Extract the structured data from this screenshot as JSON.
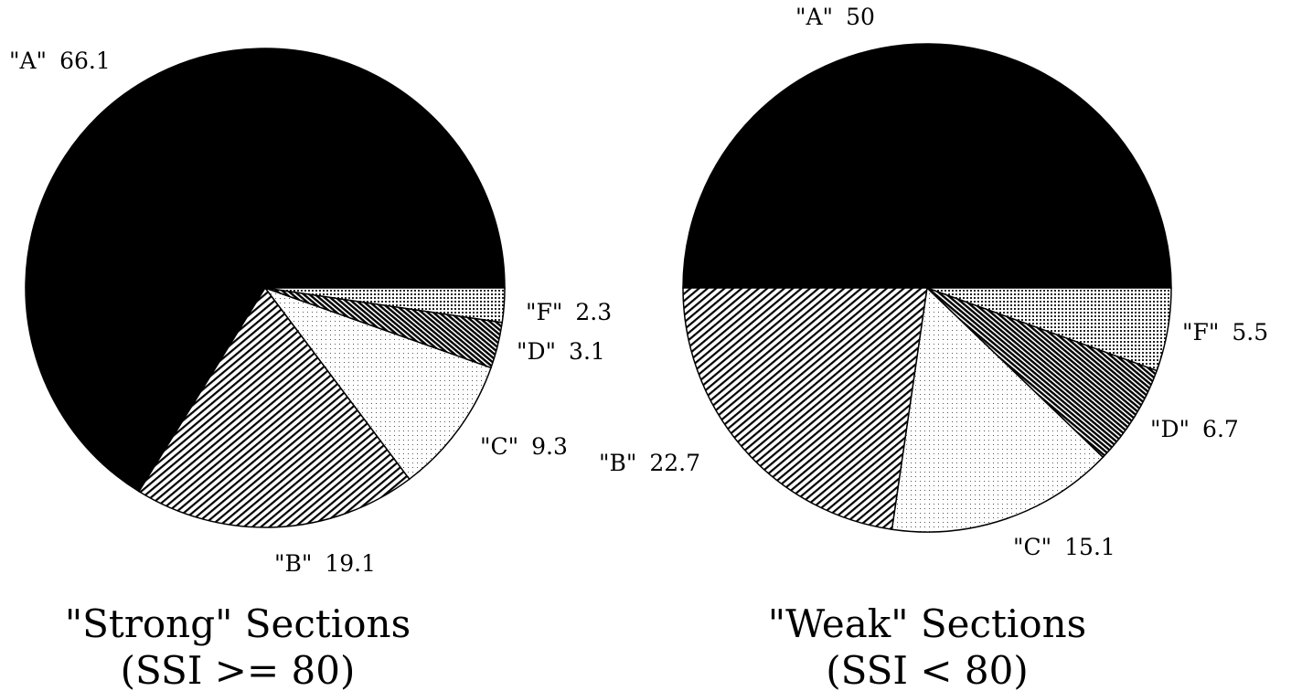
{
  "chart_data": [
    {
      "type": "pie",
      "title": "\"Strong\" Sections",
      "subtitle": "(SSI >= 80)",
      "categories": [
        "\"A\"",
        "\"B\"",
        "\"C\"",
        "\"D\"",
        "\"F\""
      ],
      "values": [
        66.1,
        19.1,
        9.3,
        3.1,
        2.3
      ]
    },
    {
      "type": "pie",
      "title": "\"Weak\" Sections",
      "subtitle": "(SSI < 80)",
      "categories": [
        "\"A\"",
        "\"B\"",
        "\"C\"",
        "\"D\"",
        "\"F\""
      ],
      "values": [
        50,
        22.7,
        15.1,
        6.7,
        5.5
      ]
    }
  ]
}
